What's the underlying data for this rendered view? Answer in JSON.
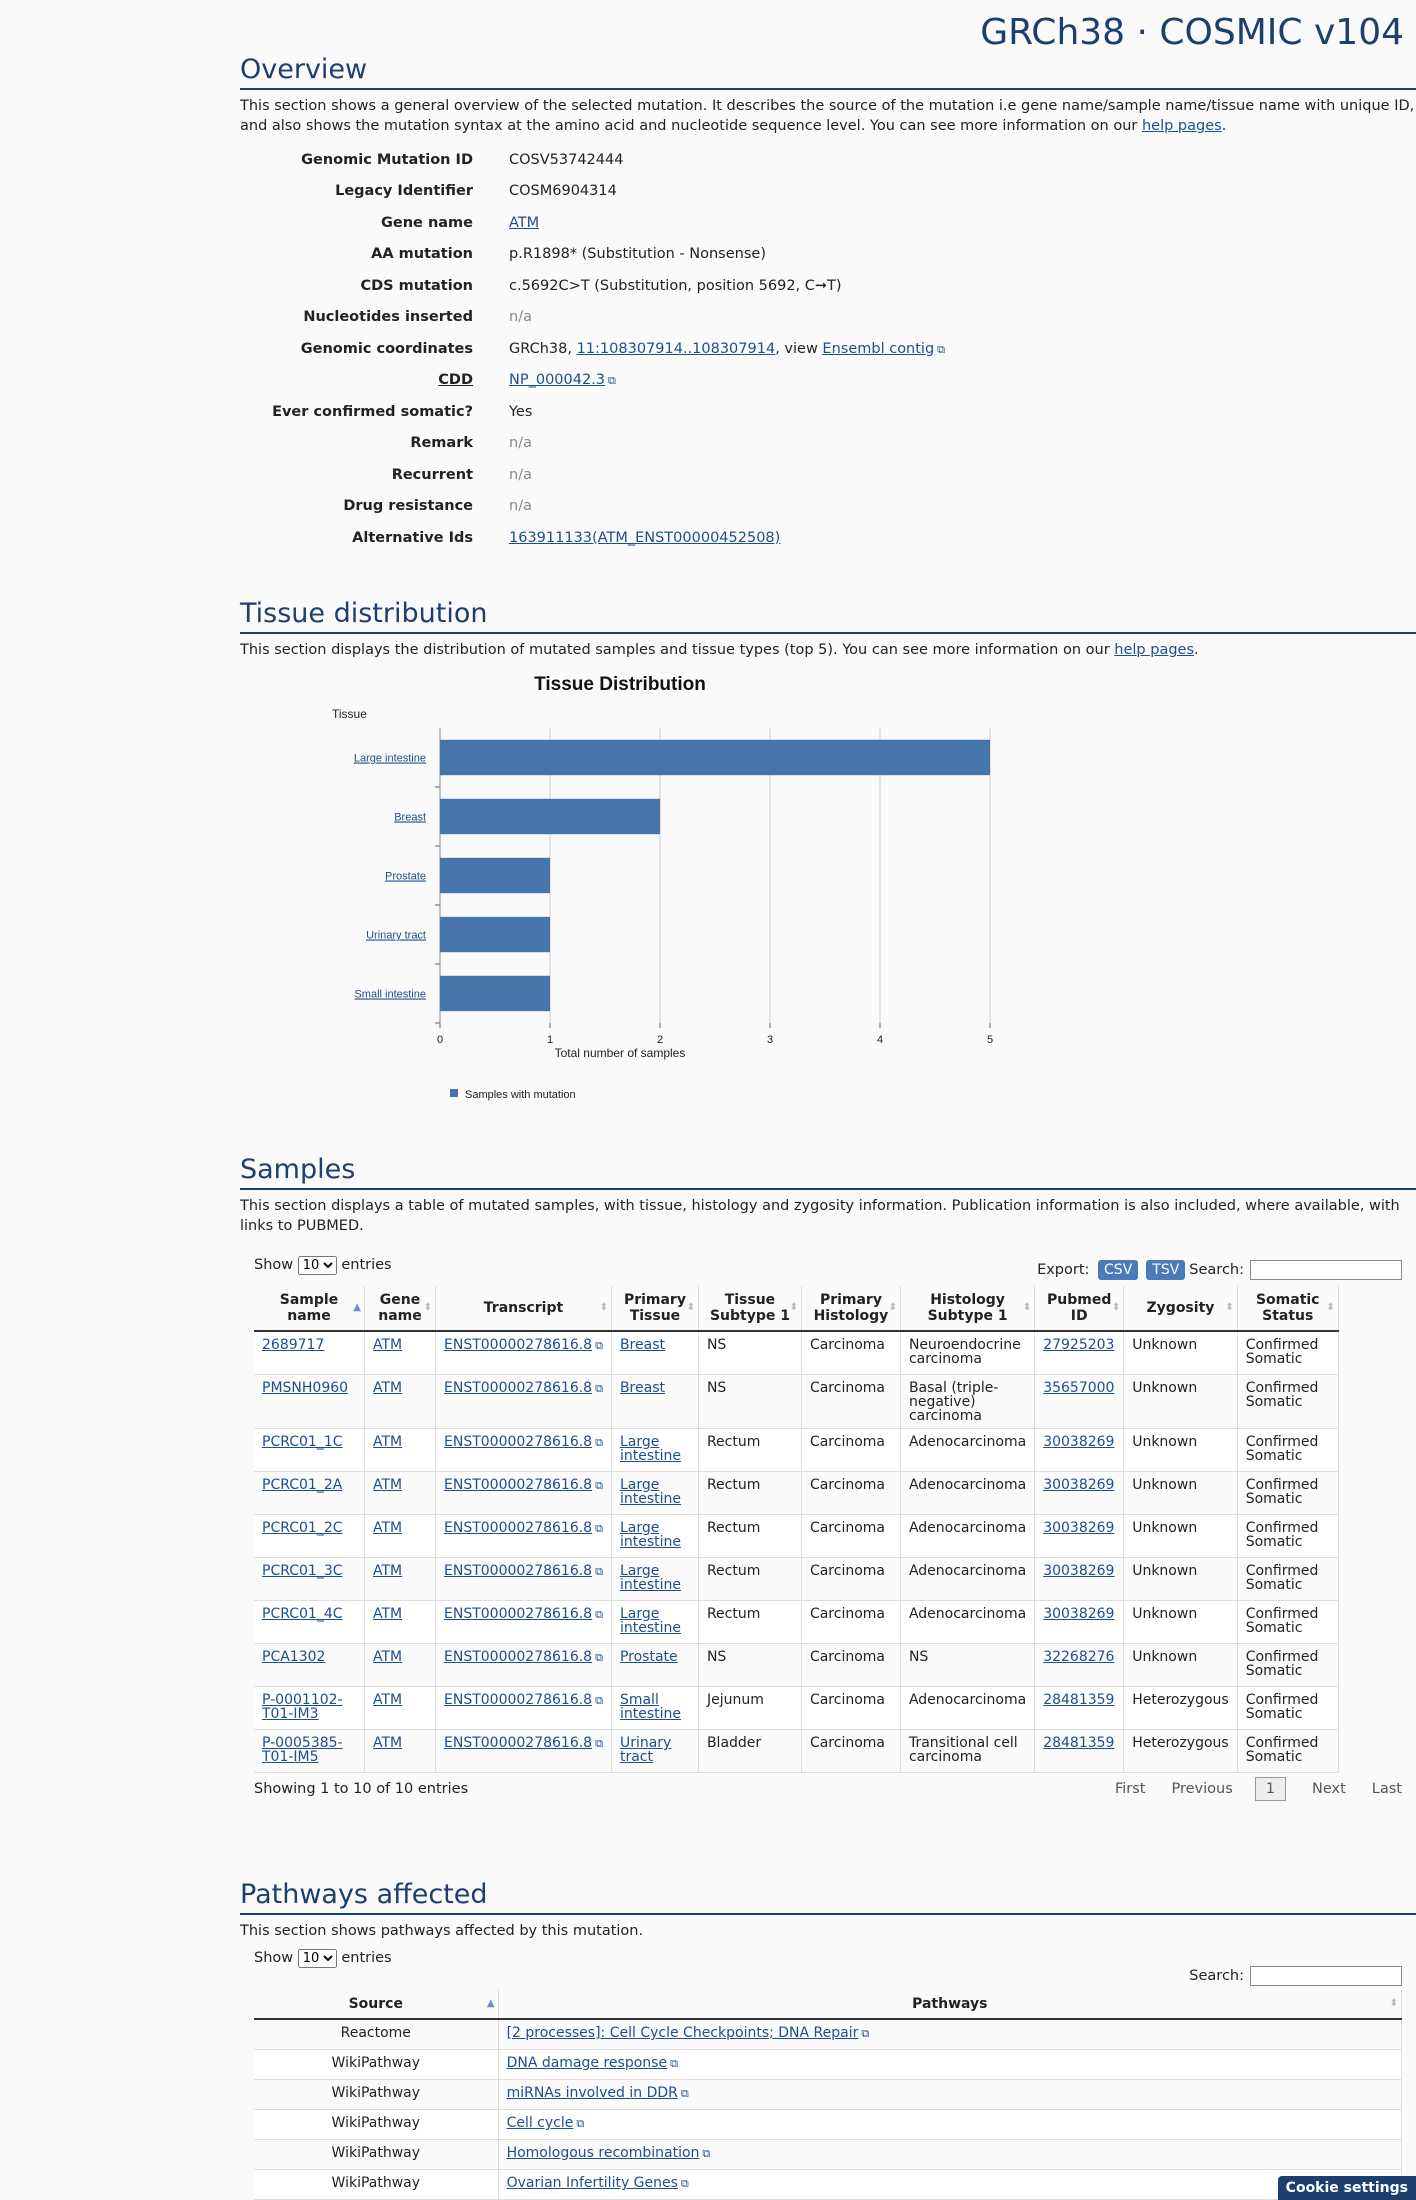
{
  "header": {
    "brand": "GRCh38 · COSMIC v104"
  },
  "overview": {
    "title": "Overview",
    "desc_pre": "This section shows a general overview of the selected mutation. It describes the source of the mutation i.e gene name/sample name/tissue name with unique ID, and also shows the mutation syntax at the amino acid and nucleotide sequence level. You can see more information on our ",
    "help_link": "help pages",
    "desc_post": ".",
    "rows": [
      {
        "k": "Genomic Mutation ID",
        "v": "COSV53742444"
      },
      {
        "k": "Legacy Identifier",
        "v": "COSM6904314"
      },
      {
        "k": "Gene name",
        "v": "ATM"
      },
      {
        "k": "AA mutation",
        "v": "p.R1898* (Substitution - Nonsense)"
      },
      {
        "k": "CDS mutation",
        "v": "c.5692C>T (Substitution, position 5692, C➞T)"
      },
      {
        "k": "Nucleotides inserted",
        "v": "n/a"
      },
      {
        "k": "Genomic coordinates",
        "v_pre": "GRCh38, ",
        "v_link": "11:108307914..108307914",
        "v_mid": ", view ",
        "v_link2": "Ensembl contig"
      },
      {
        "k": "CDD",
        "v": "NP_000042.3"
      },
      {
        "k": "Ever confirmed somatic?",
        "v": "Yes"
      },
      {
        "k": "Remark",
        "v": "n/a"
      },
      {
        "k": "Recurrent",
        "v": "n/a"
      },
      {
        "k": "Drug resistance",
        "v": "n/a"
      },
      {
        "k": "Alternative Ids",
        "v": "163911133(ATM_ENST00000452508)"
      }
    ]
  },
  "tissue": {
    "title": "Tissue distribution",
    "desc_pre": "This section displays the distribution of mutated samples and tissue types (top 5). You can see more information on our ",
    "help_link": "help pages",
    "desc_post": "."
  },
  "chart_data": {
    "type": "bar",
    "orientation": "horizontal",
    "title": "Tissue Distribution",
    "ylabel": "Tissue",
    "xlabel": "Total number of samples",
    "categories": [
      "Large intestine",
      "Breast",
      "Prostate",
      "Urinary tract",
      "Small intestine"
    ],
    "series": [
      {
        "name": "Samples with mutation",
        "values": [
          5,
          2,
          1,
          1,
          1
        ]
      }
    ],
    "xlim": [
      0,
      5
    ],
    "xticks": [
      "0",
      "1",
      "2",
      "3",
      "4",
      "5"
    ],
    "grid": true,
    "legend": "bottom-left",
    "color": "#4575aa"
  },
  "samples": {
    "title": "Samples",
    "desc": "This section displays a table of mutated samples, with tissue, histology and zygosity information. Publication information is also included, where available, with links to PUBMED.",
    "show": "Show",
    "show_val": "10",
    "entries": "entries",
    "export": "Export:",
    "csv": "CSV",
    "tsv": "TSV",
    "search": "Search:",
    "columns": [
      "Sample name",
      "Gene name",
      "Transcript",
      "Primary Tissue",
      "Tissue Subtype 1",
      "Primary Histology",
      "Histology Subtype 1",
      "Pubmed ID",
      "Zygosity",
      "Somatic Status"
    ],
    "rows": [
      [
        "2689717",
        "ATM",
        "ENST00000278616.8",
        "Breast",
        "NS",
        "Carcinoma",
        "Neuroendocrine carcinoma",
        "27925203",
        "Unknown",
        "Confirmed Somatic"
      ],
      [
        "PMSNH0960",
        "ATM",
        "ENST00000278616.8",
        "Breast",
        "NS",
        "Carcinoma",
        "Basal (triple-negative) carcinoma",
        "35657000",
        "Unknown",
        "Confirmed Somatic"
      ],
      [
        "PCRC01_1C",
        "ATM",
        "ENST00000278616.8",
        "Large intestine",
        "Rectum",
        "Carcinoma",
        "Adenocarcinoma",
        "30038269",
        "Unknown",
        "Confirmed Somatic"
      ],
      [
        "PCRC01_2A",
        "ATM",
        "ENST00000278616.8",
        "Large intestine",
        "Rectum",
        "Carcinoma",
        "Adenocarcinoma",
        "30038269",
        "Unknown",
        "Confirmed Somatic"
      ],
      [
        "PCRC01_2C",
        "ATM",
        "ENST00000278616.8",
        "Large intestine",
        "Rectum",
        "Carcinoma",
        "Adenocarcinoma",
        "30038269",
        "Unknown",
        "Confirmed Somatic"
      ],
      [
        "PCRC01_3C",
        "ATM",
        "ENST00000278616.8",
        "Large intestine",
        "Rectum",
        "Carcinoma",
        "Adenocarcinoma",
        "30038269",
        "Unknown",
        "Confirmed Somatic"
      ],
      [
        "PCRC01_4C",
        "ATM",
        "ENST00000278616.8",
        "Large intestine",
        "Rectum",
        "Carcinoma",
        "Adenocarcinoma",
        "30038269",
        "Unknown",
        "Confirmed Somatic"
      ],
      [
        "PCA1302",
        "ATM",
        "ENST00000278616.8",
        "Prostate",
        "NS",
        "Carcinoma",
        "NS",
        "32268276",
        "Unknown",
        "Confirmed Somatic"
      ],
      [
        "P-0001102-T01-IM3",
        "ATM",
        "ENST00000278616.8",
        "Small intestine",
        "Jejunum",
        "Carcinoma",
        "Adenocarcinoma",
        "28481359",
        "Heterozygous",
        "Confirmed Somatic"
      ],
      [
        "P-0005385-T01-IM5",
        "ATM",
        "ENST00000278616.8",
        "Urinary tract",
        "Bladder",
        "Carcinoma",
        "Transitional cell carcinoma",
        "28481359",
        "Heterozygous",
        "Confirmed Somatic"
      ]
    ],
    "info": "Showing 1 to 10 of 10 entries",
    "pager": {
      "first": "First",
      "previous": "Previous",
      "page": "1",
      "next": "Next",
      "last": "Last"
    }
  },
  "pathways": {
    "title": "Pathways affected",
    "desc": "This section shows pathways affected by this mutation.",
    "show": "Show",
    "show_val": "10",
    "entries": "entries",
    "search": "Search:",
    "columns": [
      "Source",
      "Pathways"
    ],
    "rows": [
      [
        "Reactome",
        "[2 processes]: Cell Cycle Checkpoints; DNA Repair"
      ],
      [
        "WikiPathway",
        "DNA damage response"
      ],
      [
        "WikiPathway",
        "miRNAs involved in DDR"
      ],
      [
        "WikiPathway",
        "Cell cycle"
      ],
      [
        "WikiPathway",
        "Homologous recombination"
      ],
      [
        "WikiPathway",
        "Ovarian Infertility Genes"
      ]
    ]
  },
  "cookie": "Cookie settings"
}
